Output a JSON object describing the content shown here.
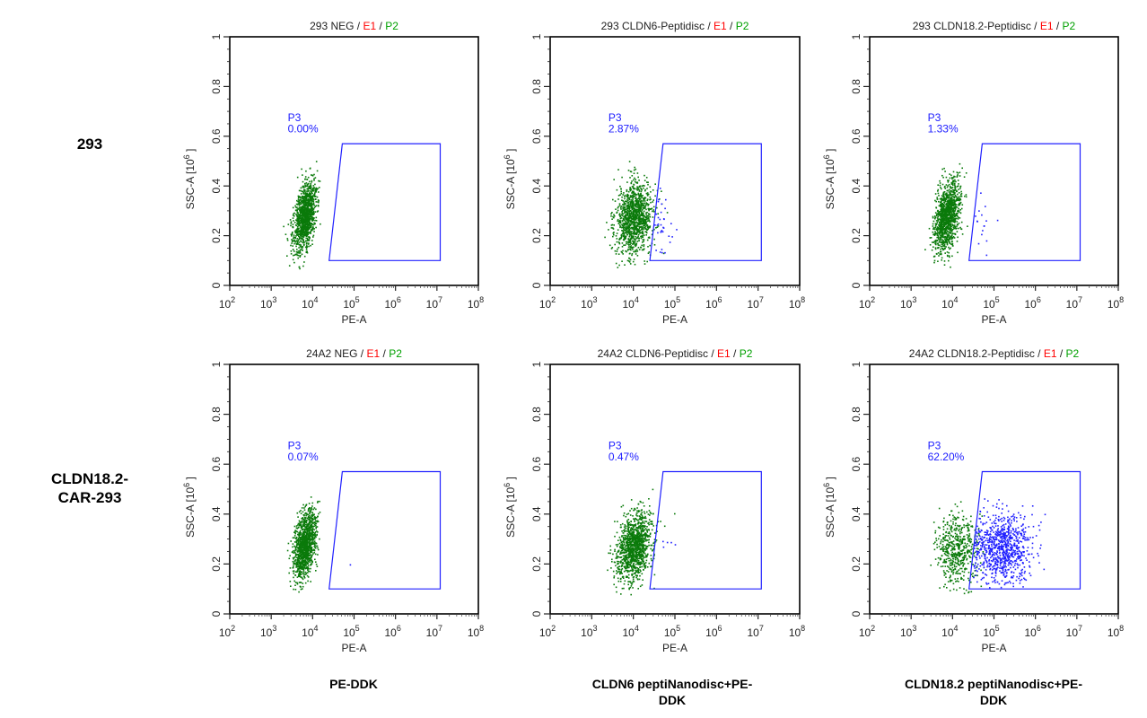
{
  "row_labels": [
    "293",
    "CLDN18.2-\nCAR-293"
  ],
  "column_labels": [
    "PE-DDK",
    "CLDN6 peptiNanodisc+PE-\nDDK",
    "CLDN18.2 peptiNanodisc+PE-\nDDK"
  ],
  "colors": {
    "event_green": "#0a7a0a",
    "gate_blue": "#2020ff",
    "e1_red": "#ff0000",
    "p2_green": "#00a000",
    "frame": "#000000"
  },
  "chart_data": [
    {
      "type": "scatter",
      "sample": "293 NEG",
      "title_suffix_e1": "E1",
      "title_suffix_p2": "P2",
      "xlabel": "PE-A",
      "ylabel": "SSC-A [10^6]",
      "xscale": "log",
      "xlim": [
        100,
        100000000
      ],
      "ylim": [
        0,
        1
      ],
      "xticks": [
        "10^2",
        "10^3",
        "10^4",
        "10^5",
        "10^6",
        "10^7",
        "10^8"
      ],
      "yticks": [
        "0",
        "0.2",
        "0.4",
        "0.6",
        "0.8",
        "1"
      ],
      "gate": {
        "name": "P3",
        "percent": "0.00%",
        "polygon": [
          [
            25000,
            0.1
          ],
          [
            52000,
            0.57
          ],
          [
            12000000,
            0.57
          ],
          [
            12000000,
            0.1
          ]
        ]
      },
      "population": {
        "p2_center_log10x": 3.8,
        "p2_center_y": 0.28,
        "spread_logx": 0.12,
        "spread_y": 0.07,
        "tilt": 0.3,
        "count": 1200,
        "p3_fraction": 0.0
      }
    },
    {
      "type": "scatter",
      "sample": "293 CLDN6-Peptidisc",
      "title_suffix_e1": "E1",
      "title_suffix_p2": "P2",
      "xlabel": "PE-A",
      "ylabel": "SSC-A [10^6]",
      "xscale": "log",
      "xlim": [
        100,
        100000000
      ],
      "ylim": [
        0,
        1
      ],
      "xticks": [
        "10^2",
        "10^3",
        "10^4",
        "10^5",
        "10^6",
        "10^7",
        "10^8"
      ],
      "yticks": [
        "0",
        "0.2",
        "0.4",
        "0.6",
        "0.8",
        "1"
      ],
      "gate": {
        "name": "P3",
        "percent": "2.87%",
        "polygon": [
          [
            25000,
            0.1
          ],
          [
            52000,
            0.57
          ],
          [
            12000000,
            0.57
          ],
          [
            12000000,
            0.1
          ]
        ]
      },
      "population": {
        "p2_center_log10x": 4.0,
        "p2_center_y": 0.27,
        "spread_logx": 0.22,
        "spread_y": 0.07,
        "tilt": 0.1,
        "count": 1200,
        "p3_fraction": 0.0287
      }
    },
    {
      "type": "scatter",
      "sample": "293 CLDN18.2-Peptidisc",
      "title_suffix_e1": "E1",
      "title_suffix_p2": "P2",
      "xlabel": "PE-A",
      "ylabel": "SSC-A [10^6]",
      "xscale": "log",
      "xlim": [
        100,
        100000000
      ],
      "ylim": [
        0,
        1
      ],
      "xticks": [
        "10^2",
        "10^3",
        "10^4",
        "10^5",
        "10^6",
        "10^7",
        "10^8"
      ],
      "yticks": [
        "0",
        "0.2",
        "0.4",
        "0.6",
        "0.8",
        "1"
      ],
      "gate": {
        "name": "P3",
        "percent": "1.33%",
        "polygon": [
          [
            25000,
            0.1
          ],
          [
            52000,
            0.57
          ],
          [
            12000000,
            0.57
          ],
          [
            12000000,
            0.1
          ]
        ]
      },
      "population": {
        "p2_center_log10x": 3.85,
        "p2_center_y": 0.28,
        "spread_logx": 0.14,
        "spread_y": 0.07,
        "tilt": 0.3,
        "count": 1200,
        "p3_fraction": 0.0133
      }
    },
    {
      "type": "scatter",
      "sample": "24A2 NEG",
      "title_suffix_e1": "E1",
      "title_suffix_p2": "P2",
      "xlabel": "PE-A",
      "ylabel": "SSC-A [10^6]",
      "xscale": "log",
      "xlim": [
        100,
        100000000
      ],
      "ylim": [
        0,
        1
      ],
      "xticks": [
        "10^2",
        "10^3",
        "10^4",
        "10^5",
        "10^6",
        "10^7",
        "10^8"
      ],
      "yticks": [
        "0",
        "0.2",
        "0.4",
        "0.6",
        "0.8",
        "1"
      ],
      "gate": {
        "name": "P3",
        "percent": "0.07%",
        "polygon": [
          [
            25000,
            0.1
          ],
          [
            52000,
            0.57
          ],
          [
            12000000,
            0.57
          ],
          [
            12000000,
            0.1
          ]
        ]
      },
      "population": {
        "p2_center_log10x": 3.8,
        "p2_center_y": 0.28,
        "spread_logx": 0.12,
        "spread_y": 0.07,
        "tilt": 0.3,
        "count": 1200,
        "p3_fraction": 0.0007
      }
    },
    {
      "type": "scatter",
      "sample": "24A2 CLDN6-Peptidisc",
      "title_suffix_e1": "E1",
      "title_suffix_p2": "P2",
      "xlabel": "PE-A",
      "ylabel": "SSC-A [10^6]",
      "xscale": "log",
      "xlim": [
        100,
        100000000
      ],
      "ylim": [
        0,
        1
      ],
      "xticks": [
        "10^2",
        "10^3",
        "10^4",
        "10^5",
        "10^6",
        "10^7",
        "10^8"
      ],
      "yticks": [
        "0",
        "0.2",
        "0.4",
        "0.6",
        "0.8",
        "1"
      ],
      "gate": {
        "name": "P3",
        "percent": "0.47%",
        "polygon": [
          [
            25000,
            0.1
          ],
          [
            52000,
            0.57
          ],
          [
            12000000,
            0.57
          ],
          [
            12000000,
            0.1
          ]
        ]
      },
      "population": {
        "p2_center_log10x": 4.0,
        "p2_center_y": 0.27,
        "spread_logx": 0.2,
        "spread_y": 0.07,
        "tilt": 0.2,
        "count": 1200,
        "p3_fraction": 0.0047
      }
    },
    {
      "type": "scatter",
      "sample": "24A2 CLDN18.2-Peptidisc",
      "title_suffix_e1": "E1",
      "title_suffix_p2": "P2",
      "xlabel": "PE-A",
      "ylabel": "SSC-A [10^6]",
      "xscale": "log",
      "xlim": [
        100,
        100000000
      ],
      "ylim": [
        0,
        1
      ],
      "xticks": [
        "10^2",
        "10^3",
        "10^4",
        "10^5",
        "10^6",
        "10^7",
        "10^8"
      ],
      "yticks": [
        "0",
        "0.2",
        "0.4",
        "0.6",
        "0.8",
        "1"
      ],
      "gate": {
        "name": "P3",
        "percent": "62.20%",
        "polygon": [
          [
            25000,
            0.1
          ],
          [
            52000,
            0.57
          ],
          [
            12000000,
            0.57
          ],
          [
            12000000,
            0.1
          ]
        ]
      },
      "population": {
        "p2_center_log10x": 4.1,
        "p2_center_y": 0.26,
        "spread_logx": 0.25,
        "spread_y": 0.07,
        "tilt": 0.0,
        "count": 1400,
        "p3_fraction": 0.622,
        "p3_center_log10x": 5.2,
        "p3_spread_logx": 0.35
      }
    }
  ]
}
